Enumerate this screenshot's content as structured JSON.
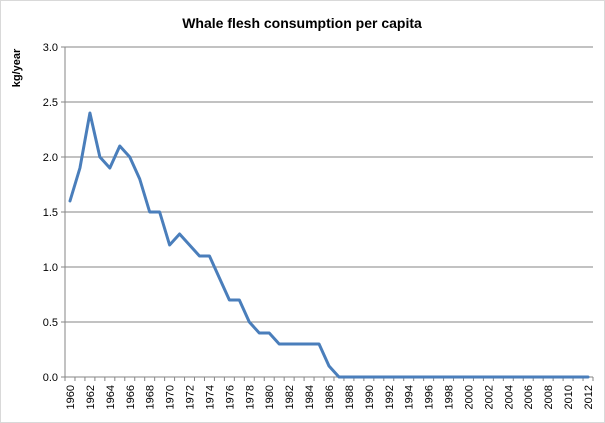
{
  "chart_data": {
    "type": "line",
    "title": "Whale flesh consumption per capita",
    "xlabel": "",
    "ylabel": "kg/year",
    "ylim": [
      0,
      3.0
    ],
    "yticks": [
      "0.0",
      "0.5",
      "1.0",
      "1.5",
      "2.0",
      "2.5",
      "3.0"
    ],
    "xtick_labels": [
      "1960",
      "1962",
      "1964",
      "1966",
      "1968",
      "1970",
      "1972",
      "1974",
      "1976",
      "1978",
      "1980",
      "1982",
      "1984",
      "1986",
      "1988",
      "1990",
      "1992",
      "1994",
      "1996",
      "1998",
      "2000",
      "2002",
      "2004",
      "2006",
      "2008",
      "2010",
      "2012"
    ],
    "grid": true,
    "legend": "none",
    "line_color": "#4a7ebb",
    "x": [
      1960,
      1961,
      1962,
      1963,
      1964,
      1965,
      1966,
      1967,
      1968,
      1969,
      1970,
      1971,
      1972,
      1973,
      1974,
      1975,
      1976,
      1977,
      1978,
      1979,
      1980,
      1981,
      1982,
      1983,
      1984,
      1985,
      1986,
      1987,
      1988,
      1989,
      1990,
      1991,
      1992,
      1993,
      1994,
      1995,
      1996,
      1997,
      1998,
      1999,
      2000,
      2001,
      2002,
      2003,
      2004,
      2005,
      2006,
      2007,
      2008,
      2009,
      2010,
      2011,
      2012
    ],
    "series": [
      {
        "values": [
          1.6,
          1.9,
          2.4,
          2.0,
          1.9,
          2.1,
          2.0,
          1.8,
          1.5,
          1.5,
          1.2,
          1.3,
          1.2,
          1.1,
          1.1,
          0.9,
          0.7,
          0.7,
          0.5,
          0.4,
          0.4,
          0.3,
          0.3,
          0.3,
          0.3,
          0.3,
          0.1,
          0.0,
          0.0,
          0.0,
          0.0,
          0.0,
          0.0,
          0.0,
          0.0,
          0.0,
          0.0,
          0.0,
          0.0,
          0.0,
          0.0,
          0.0,
          0.0,
          0.0,
          0.0,
          0.0,
          0.0,
          0.0,
          0.0,
          0.0,
          0.0,
          0.0,
          0.0
        ]
      }
    ]
  }
}
